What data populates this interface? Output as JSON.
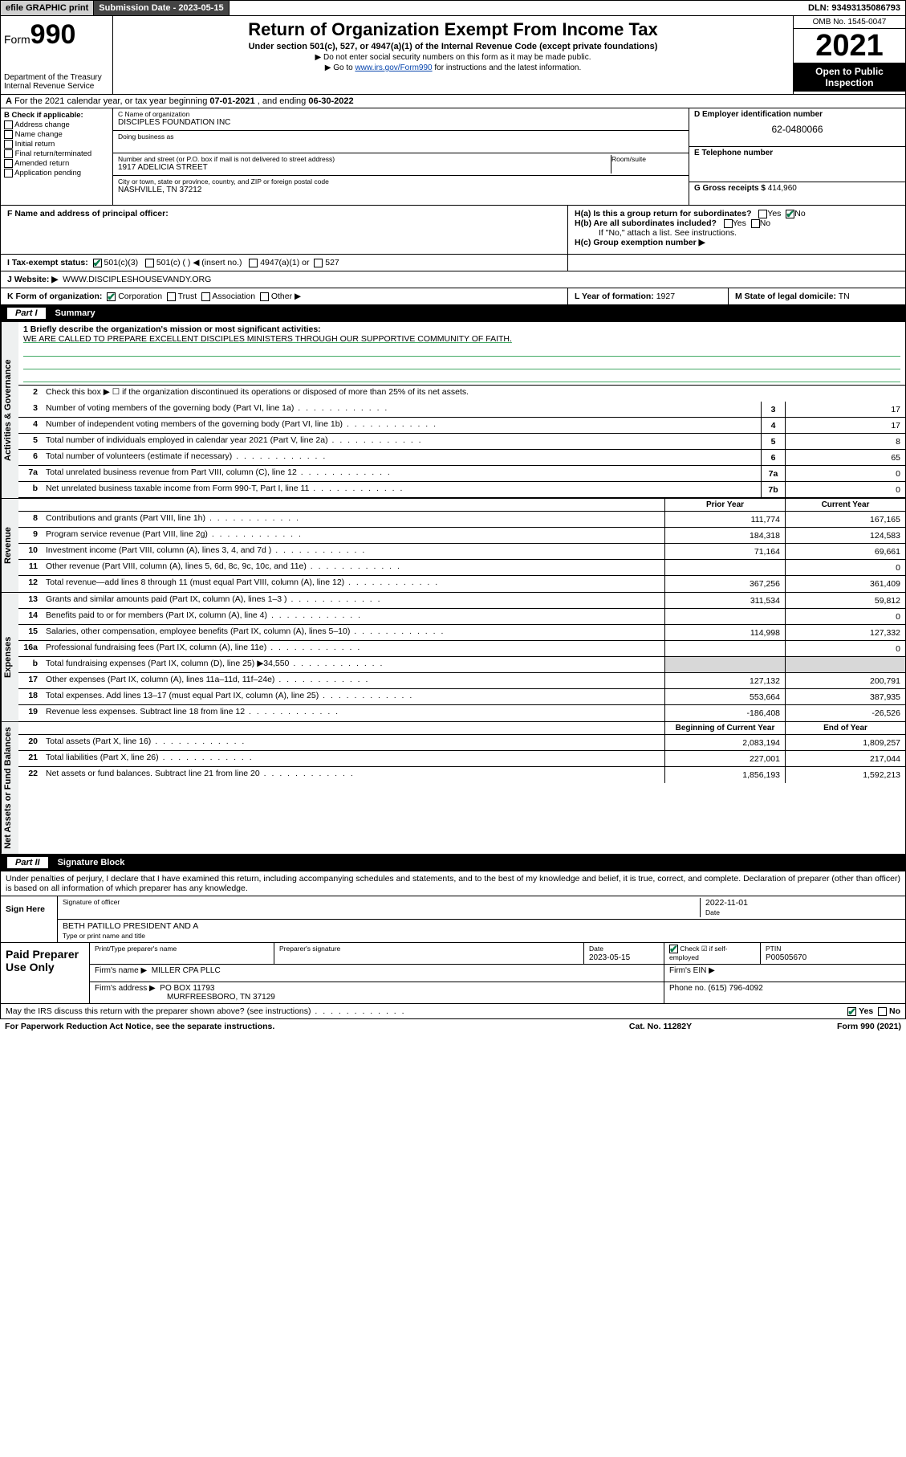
{
  "topbar": {
    "efile": "efile GRAPHIC print",
    "submission": "Submission Date - 2023-05-15",
    "dln": "DLN: 93493135086793"
  },
  "header": {
    "form_prefix": "Form",
    "form_num": "990",
    "dept": "Department of the Treasury",
    "irs": "Internal Revenue Service",
    "title": "Return of Organization Exempt From Income Tax",
    "sub": "Under section 501(c), 527, or 4947(a)(1) of the Internal Revenue Code (except private foundations)",
    "note1": "▶ Do not enter social security numbers on this form as it may be made public.",
    "note2_pre": "▶ Go to ",
    "note2_link": "www.irs.gov/Form990",
    "note2_post": " for instructions and the latest information.",
    "omb": "OMB No. 1545-0047",
    "year": "2021",
    "inspection1": "Open to Public",
    "inspection2": "Inspection"
  },
  "rowA": {
    "label": "A",
    "text": "For the 2021 calendar year, or tax year beginning ",
    "begin": "07-01-2021",
    "mid": " , and ending ",
    "end": "06-30-2022"
  },
  "boxB": {
    "label": "B Check if applicable:",
    "items": [
      "Address change",
      "Name change",
      "Initial return",
      "Final return/terminated",
      "Amended return",
      "Application pending"
    ]
  },
  "boxC": {
    "name_lbl": "C Name of organization",
    "name": "DISCIPLES FOUNDATION INC",
    "dba_lbl": "Doing business as",
    "dba": "",
    "addr_lbl": "Number and street (or P.O. box if mail is not delivered to street address)",
    "room_lbl": "Room/suite",
    "addr": "1917 ADELICIA STREET",
    "city_lbl": "City or town, state or province, country, and ZIP or foreign postal code",
    "city": "NASHVILLE, TN  37212"
  },
  "boxD": {
    "lbl": "D Employer identification number",
    "val": "62-0480066"
  },
  "boxE": {
    "lbl": "E Telephone number",
    "val": ""
  },
  "boxG": {
    "lbl": "G Gross receipts $",
    "val": "414,960"
  },
  "rowF": {
    "lbl": "F  Name and address of principal officer:",
    "val": ""
  },
  "rowH": {
    "ha": "H(a)  Is this a group return for subordinates?",
    "hb": "H(b)  Are all subordinates included?",
    "hb_note": "If \"No,\" attach a list. See instructions.",
    "hc": "H(c)  Group exemption number ▶",
    "yes": "Yes",
    "no": "No"
  },
  "rowI": {
    "lbl": "I     Tax-exempt status:",
    "o1": "501(c)(3)",
    "o2": "501(c) (  ) ◀ (insert no.)",
    "o3": "4947(a)(1) or",
    "o4": "527"
  },
  "rowJ": {
    "lbl": "J    Website: ▶",
    "val": "WWW.DISCIPLESHOUSEVANDY.ORG"
  },
  "rowK": {
    "lbl": "K Form of organization:",
    "opts": [
      "Corporation",
      "Trust",
      "Association",
      "Other ▶"
    ],
    "l_lbl": "L Year of formation:",
    "l_val": "1927",
    "m_lbl": "M State of legal domicile:",
    "m_val": "TN"
  },
  "part1": {
    "num": "Part I",
    "title": "Summary"
  },
  "summary": {
    "side_gov": "Activities & Governance",
    "side_rev": "Revenue",
    "side_exp": "Expenses",
    "side_net": "Net Assets or Fund Balances",
    "l1_lbl": "1  Briefly describe the organization's mission or most significant activities:",
    "l1_txt": "WE ARE CALLED TO PREPARE EXCELLENT DISCIPLES MINISTERS THROUGH OUR SUPPORTIVE COMMUNITY OF FAITH.",
    "l2": "Check this box ▶ ☐  if the organization discontinued its operations or disposed of more than 25% of its net assets.",
    "lines_gov": [
      {
        "n": "3",
        "t": "Number of voting members of the governing body (Part VI, line 1a)",
        "box": "3",
        "v": "17"
      },
      {
        "n": "4",
        "t": "Number of independent voting members of the governing body (Part VI, line 1b)",
        "box": "4",
        "v": "17"
      },
      {
        "n": "5",
        "t": "Total number of individuals employed in calendar year 2021 (Part V, line 2a)",
        "box": "5",
        "v": "8"
      },
      {
        "n": "6",
        "t": "Total number of volunteers (estimate if necessary)",
        "box": "6",
        "v": "65"
      },
      {
        "n": "7a",
        "t": "Total unrelated business revenue from Part VIII, column (C), line 12",
        "box": "7a",
        "v": "0"
      },
      {
        "n": "b",
        "t": "Net unrelated business taxable income from Form 990-T, Part I, line 11",
        "box": "7b",
        "v": "0"
      }
    ],
    "hdr_prior": "Prior Year",
    "hdr_curr": "Current Year",
    "lines_rev": [
      {
        "n": "8",
        "t": "Contributions and grants (Part VIII, line 1h)",
        "p": "111,774",
        "c": "167,165"
      },
      {
        "n": "9",
        "t": "Program service revenue (Part VIII, line 2g)",
        "p": "184,318",
        "c": "124,583"
      },
      {
        "n": "10",
        "t": "Investment income (Part VIII, column (A), lines 3, 4, and 7d )",
        "p": "71,164",
        "c": "69,661"
      },
      {
        "n": "11",
        "t": "Other revenue (Part VIII, column (A), lines 5, 6d, 8c, 9c, 10c, and 11e)",
        "p": "",
        "c": "0"
      },
      {
        "n": "12",
        "t": "Total revenue—add lines 8 through 11 (must equal Part VIII, column (A), line 12)",
        "p": "367,256",
        "c": "361,409"
      }
    ],
    "lines_exp": [
      {
        "n": "13",
        "t": "Grants and similar amounts paid (Part IX, column (A), lines 1–3 )",
        "p": "311,534",
        "c": "59,812"
      },
      {
        "n": "14",
        "t": "Benefits paid to or for members (Part IX, column (A), line 4)",
        "p": "",
        "c": "0"
      },
      {
        "n": "15",
        "t": "Salaries, other compensation, employee benefits (Part IX, column (A), lines 5–10)",
        "p": "114,998",
        "c": "127,332"
      },
      {
        "n": "16a",
        "t": "Professional fundraising fees (Part IX, column (A), line 11e)",
        "p": "",
        "c": "0"
      },
      {
        "n": "b",
        "t": "Total fundraising expenses (Part IX, column (D), line 25) ▶34,550",
        "p": "shaded",
        "c": "shaded"
      },
      {
        "n": "17",
        "t": "Other expenses (Part IX, column (A), lines 11a–11d, 11f–24e)",
        "p": "127,132",
        "c": "200,791"
      },
      {
        "n": "18",
        "t": "Total expenses. Add lines 13–17 (must equal Part IX, column (A), line 25)",
        "p": "553,664",
        "c": "387,935"
      },
      {
        "n": "19",
        "t": "Revenue less expenses. Subtract line 18 from line 12",
        "p": "-186,408",
        "c": "-26,526"
      }
    ],
    "hdr_beg": "Beginning of Current Year",
    "hdr_end": "End of Year",
    "lines_net": [
      {
        "n": "20",
        "t": "Total assets (Part X, line 16)",
        "p": "2,083,194",
        "c": "1,809,257"
      },
      {
        "n": "21",
        "t": "Total liabilities (Part X, line 26)",
        "p": "227,001",
        "c": "217,044"
      },
      {
        "n": "22",
        "t": "Net assets or fund balances. Subtract line 21 from line 20",
        "p": "1,856,193",
        "c": "1,592,213"
      }
    ]
  },
  "part2": {
    "num": "Part II",
    "title": "Signature Block"
  },
  "sig": {
    "decl": "Under penalties of perjury, I declare that I have examined this return, including accompanying schedules and statements, and to the best of my knowledge and belief, it is true, correct, and complete. Declaration of preparer (other than officer) is based on all information of which preparer has any knowledge.",
    "sign_here": "Sign Here",
    "sig_officer_lbl": "Signature of officer",
    "date_lbl": "Date",
    "date_val": "2022-11-01",
    "name_lbl": "Type or print name and title",
    "name_val": "BETH PATILLO  PRESIDENT AND A",
    "paid": "Paid Preparer Use Only",
    "pc_lbls": [
      "Print/Type preparer's name",
      "Preparer's signature",
      "Date",
      "",
      "PTIN"
    ],
    "prep_date": "2023-05-15",
    "prep_check_lbl": "Check ☑ if self-employed",
    "ptin": "P00505670",
    "firm_name_lbl": "Firm's name    ▶",
    "firm_name": "MILLER CPA PLLC",
    "firm_ein_lbl": "Firm's EIN ▶",
    "firm_addr_lbl": "Firm's address ▶",
    "firm_addr1": "PO BOX 11793",
    "firm_addr2": "MURFREESBORO, TN  37129",
    "phone_lbl": "Phone no.",
    "phone": "(615) 796-4092"
  },
  "footer": {
    "q": "May the IRS discuss this return with the preparer shown above? (see instructions)",
    "yes": "Yes",
    "no": "No",
    "pra": "For Paperwork Reduction Act Notice, see the separate instructions.",
    "cat": "Cat. No. 11282Y",
    "form": "Form 990 (2021)"
  }
}
